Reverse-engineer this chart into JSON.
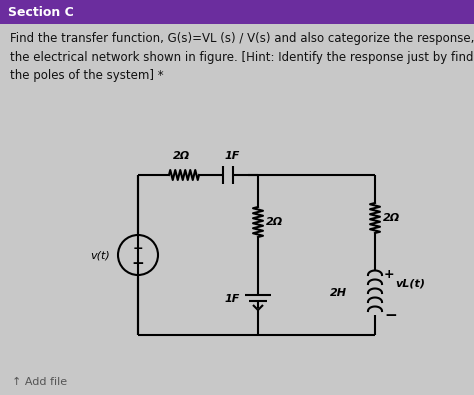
{
  "header_text": "Section C",
  "header_bg": "#6B2D9E",
  "header_text_color": "#ffffff",
  "body_bg": "#c8c8c8",
  "card_bg": "#e0e0e0",
  "question_text": "Find the transfer function, G(s)=VL (s) / V(s) and also categorize the response, for\nthe electrical network shown in figure. [Hint: Identify the response just by finding\nthe poles of the system] *",
  "question_fontsize": 8.5,
  "add_file_text": "↑ Add file",
  "circuit_labels": {
    "resistor_top_label": "2Ω",
    "capacitor_top_label": "1F",
    "resistor_mid_label": "2Ω",
    "resistor_right_label": "2Ω",
    "capacitor_bot_label": "1F",
    "inductor_label": "2H",
    "source_label": "v(t)",
    "output_label": "vL(t)"
  }
}
